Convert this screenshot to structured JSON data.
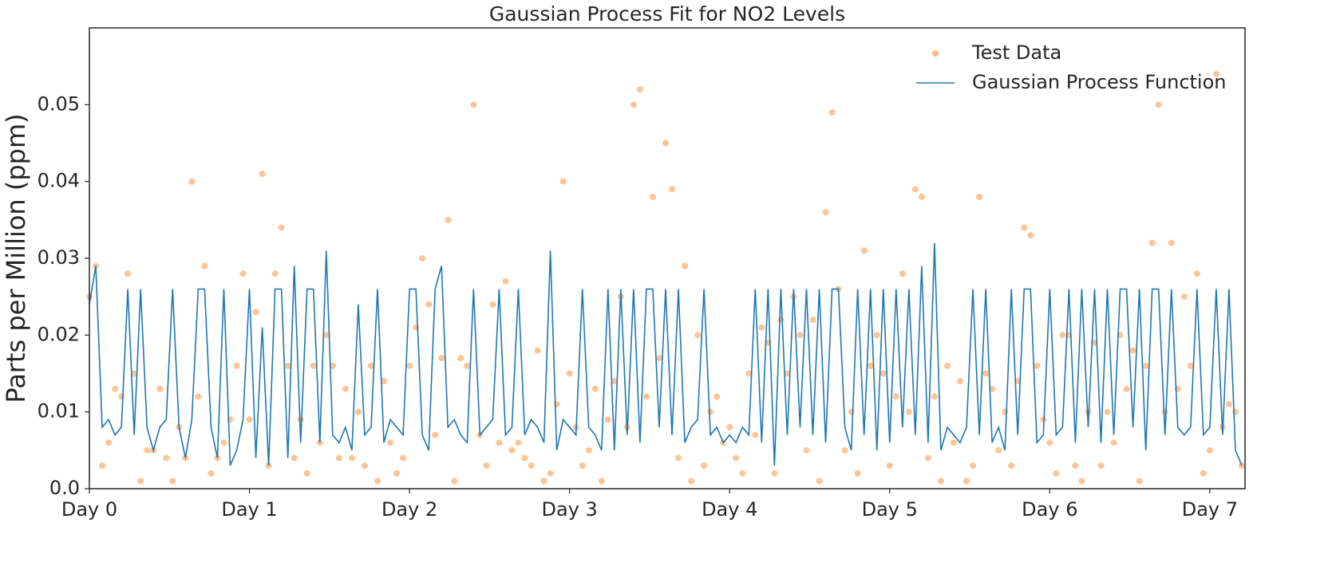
{
  "chart_data": {
    "type": "line",
    "title": "Gaussian Process Fit for NO2 Levels",
    "y_label": "Parts per Million (ppm)",
    "xlim": [
      0,
      7.22
    ],
    "ylim": [
      0,
      0.06
    ],
    "xticks": [
      {
        "value": 0,
        "label": "Day 0"
      },
      {
        "value": 1,
        "label": "Day 1"
      },
      {
        "value": 2,
        "label": "Day 2"
      },
      {
        "value": 3,
        "label": "Day 3"
      },
      {
        "value": 4,
        "label": "Day 4"
      },
      {
        "value": 5,
        "label": "Day 5"
      },
      {
        "value": 6,
        "label": "Day 6"
      },
      {
        "value": 7,
        "label": "Day 7"
      }
    ],
    "yticks": [
      {
        "value": 0,
        "label": "0.0"
      },
      0.01,
      0.02,
      0.03,
      0.04,
      0.05
    ],
    "grid": false,
    "legend": "upper right",
    "x": [
      0,
      0.04,
      0.08,
      0.12,
      0.16,
      0.2,
      0.24,
      0.28,
      0.32,
      0.36,
      0.4,
      0.44,
      0.48,
      0.52,
      0.56,
      0.6,
      0.64,
      0.68,
      0.72,
      0.76,
      0.8,
      0.84,
      0.88,
      0.92,
      0.96,
      1,
      1.04,
      1.08,
      1.12,
      1.16,
      1.2,
      1.24,
      1.28,
      1.32,
      1.36,
      1.4,
      1.44,
      1.48,
      1.52,
      1.56,
      1.6,
      1.64,
      1.68,
      1.72,
      1.76,
      1.8,
      1.84,
      1.88,
      1.92,
      1.96,
      2,
      2.04,
      2.08,
      2.12,
      2.16,
      2.2,
      2.24,
      2.28,
      2.32,
      2.36,
      2.4,
      2.44,
      2.48,
      2.52,
      2.56,
      2.6,
      2.64,
      2.68,
      2.72,
      2.76,
      2.8,
      2.84,
      2.88,
      2.92,
      2.96,
      3,
      3.04,
      3.08,
      3.12,
      3.16,
      3.2,
      3.24,
      3.28,
      3.32,
      3.36,
      3.4,
      3.44,
      3.48,
      3.52,
      3.56,
      3.6,
      3.64,
      3.68,
      3.72,
      3.76,
      3.8,
      3.84,
      3.88,
      3.92,
      3.96,
      4,
      4.04,
      4.08,
      4.12,
      4.16,
      4.2,
      4.24,
      4.28,
      4.32,
      4.36,
      4.4,
      4.44,
      4.48,
      4.52,
      4.56,
      4.6,
      4.64,
      4.68,
      4.72,
      4.76,
      4.8,
      4.84,
      4.88,
      4.92,
      4.96,
      5,
      5.04,
      5.08,
      5.12,
      5.16,
      5.2,
      5.24,
      5.28,
      5.32,
      5.36,
      5.4,
      5.44,
      5.48,
      5.52,
      5.56,
      5.6,
      5.64,
      5.68,
      5.72,
      5.76,
      5.8,
      5.84,
      5.88,
      5.92,
      5.96,
      6,
      6.04,
      6.08,
      6.12,
      6.16,
      6.2,
      6.24,
      6.28,
      6.32,
      6.36,
      6.4,
      6.44,
      6.48,
      6.52,
      6.56,
      6.6,
      6.64,
      6.68,
      6.72,
      6.76,
      6.8,
      6.84,
      6.88,
      6.92,
      6.96,
      7,
      7.04,
      7.08,
      7.12,
      7.16,
      7.2
    ],
    "series": [
      {
        "name": "Test Data",
        "type": "scatter",
        "color": "#fdbb84",
        "values": [
          0.025,
          0.029,
          0.003,
          0.006,
          0.013,
          0.012,
          0.028,
          0.015,
          0.001,
          0.005,
          0.005,
          0.013,
          0.004,
          0.001,
          0.008,
          0.004,
          0.04,
          0.012,
          0.029,
          0.002,
          0.004,
          0.006,
          0.009,
          0.016,
          0.028,
          0.009,
          0.023,
          0.041,
          0.003,
          0.028,
          0.034,
          0.016,
          0.004,
          0.009,
          0.002,
          0.016,
          0.006,
          0.02,
          0.016,
          0.004,
          0.013,
          0.004,
          0.01,
          0.003,
          0.016,
          0.001,
          0.014,
          0.006,
          0.002,
          0.004,
          0.016,
          0.021,
          0.03,
          0.024,
          0.007,
          0.017,
          0.035,
          0.001,
          0.017,
          0.016,
          0.05,
          0.007,
          0.003,
          0.024,
          0.006,
          0.027,
          0.005,
          0.006,
          0.004,
          0.003,
          0.018,
          0.001,
          0.002,
          0.011,
          0.04,
          0.015,
          0.008,
          0.003,
          0.005,
          0.013,
          0.001,
          0.009,
          0.014,
          0.025,
          0.008,
          0.05,
          0.052,
          0.012,
          0.038,
          0.017,
          0.045,
          0.039,
          0.004,
          0.029,
          0.001,
          0.02,
          0.003,
          0.01,
          0.012,
          0.006,
          0.008,
          0.004,
          0.002,
          0.015,
          0.007,
          0.021,
          0.019,
          0.002,
          0.022,
          0.015,
          0.025,
          0.02,
          0.005,
          0.022,
          0.001,
          0.036,
          0.049,
          0.026,
          0.005,
          0.01,
          0.002,
          0.031,
          0.016,
          0.02,
          0.015,
          0.003,
          0.012,
          0.028,
          0.01,
          0.039,
          0.038,
          0.004,
          0.012,
          0.001,
          0.016,
          0.006,
          0.014,
          0.001,
          0.003,
          0.038,
          0.015,
          0.013,
          0.005,
          0.01,
          0.003,
          0.014,
          0.034,
          0.033,
          0.016,
          0.009,
          0.006,
          0.002,
          0.02,
          0.02,
          0.003,
          0.001,
          0.01,
          0.019,
          0.003,
          0.01,
          0.006,
          0.02,
          0.013,
          0.018,
          0.001,
          0.016,
          0.032,
          0.05,
          0.01,
          0.032,
          0.013,
          0.025,
          0.016,
          0.028,
          0.002,
          0.005,
          0.054,
          0.008,
          0.011,
          0.01,
          0.003
        ]
      },
      {
        "name": "Gaussian Process Function",
        "type": "line",
        "color": "#1f77b4",
        "values": [
          0.024,
          0.029,
          0.008,
          0.009,
          0.007,
          0.008,
          0.026,
          0.007,
          0.026,
          0.008,
          0.005,
          0.008,
          0.009,
          0.026,
          0.008,
          0.004,
          0.009,
          0.026,
          0.026,
          0.008,
          0.004,
          0.026,
          0.003,
          0.005,
          0.009,
          0.026,
          0.004,
          0.021,
          0.003,
          0.026,
          0.026,
          0.004,
          0.029,
          0.006,
          0.026,
          0.026,
          0.006,
          0.031,
          0.007,
          0.006,
          0.008,
          0.005,
          0.024,
          0.007,
          0.008,
          0.026,
          0.006,
          0.009,
          0.008,
          0.007,
          0.026,
          0.026,
          0.007,
          0.005,
          0.026,
          0.029,
          0.008,
          0.009,
          0.007,
          0.006,
          0.026,
          0.007,
          0.008,
          0.009,
          0.026,
          0.007,
          0.008,
          0.026,
          0.007,
          0.009,
          0.008,
          0.006,
          0.031,
          0.005,
          0.009,
          0.008,
          0.007,
          0.026,
          0.008,
          0.007,
          0.005,
          0.026,
          0.005,
          0.026,
          0.007,
          0.026,
          0.006,
          0.026,
          0.026,
          0.008,
          0.026,
          0.007,
          0.026,
          0.006,
          0.008,
          0.009,
          0.026,
          0.007,
          0.008,
          0.006,
          0.007,
          0.006,
          0.008,
          0.007,
          0.026,
          0.006,
          0.026,
          0.003,
          0.026,
          0.007,
          0.026,
          0.008,
          0.026,
          0.007,
          0.026,
          0.006,
          0.026,
          0.026,
          0.008,
          0.005,
          0.026,
          0.007,
          0.026,
          0.005,
          0.026,
          0.006,
          0.026,
          0.008,
          0.026,
          0.007,
          0.029,
          0.006,
          0.032,
          0.005,
          0.008,
          0.007,
          0.006,
          0.008,
          0.026,
          0.007,
          0.026,
          0.006,
          0.008,
          0.005,
          0.026,
          0.007,
          0.026,
          0.026,
          0.006,
          0.007,
          0.026,
          0.007,
          0.008,
          0.026,
          0.006,
          0.026,
          0.008,
          0.026,
          0.006,
          0.026,
          0.007,
          0.026,
          0.026,
          0.008,
          0.026,
          0.005,
          0.026,
          0.026,
          0.007,
          0.026,
          0.008,
          0.007,
          0.008,
          0.026,
          0.007,
          0.008,
          0.026,
          0.007,
          0.026,
          0.005,
          0.003
        ]
      }
    ]
  }
}
